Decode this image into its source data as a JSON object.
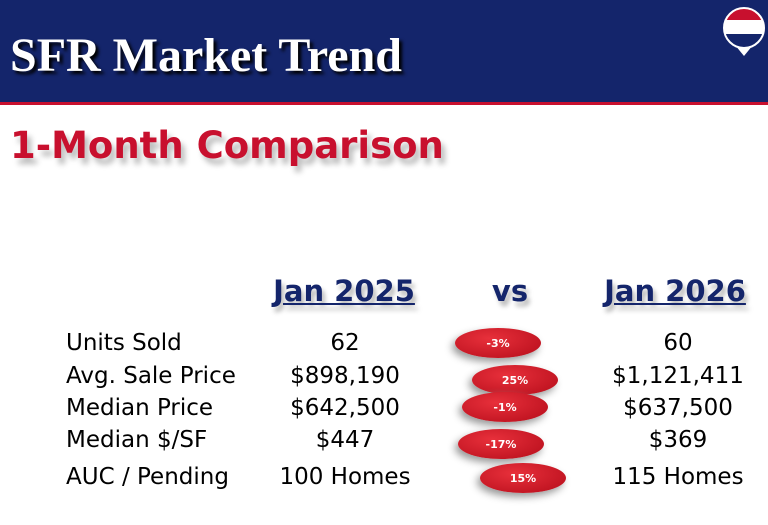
{
  "header": {
    "title": "SFR Market Trend"
  },
  "subtitle": "1-Month Comparison",
  "table": {
    "columns": [
      "Jan 2025",
      "vs",
      "Jan 2026"
    ],
    "rows": [
      [
        "Units Sold",
        "62",
        "-3%",
        "60"
      ],
      [
        "Avg. Sale Price",
        "$898,190",
        "25%",
        "$1,121,411"
      ],
      [
        "Median Price",
        "$642,500",
        "-1%",
        "$637,500"
      ],
      [
        "Median $/SF",
        "$447",
        "-17%",
        "$369"
      ],
      [
        "AUC / Pending",
        "100 Homes",
        "15%",
        "115 Homes"
      ]
    ]
  }
}
